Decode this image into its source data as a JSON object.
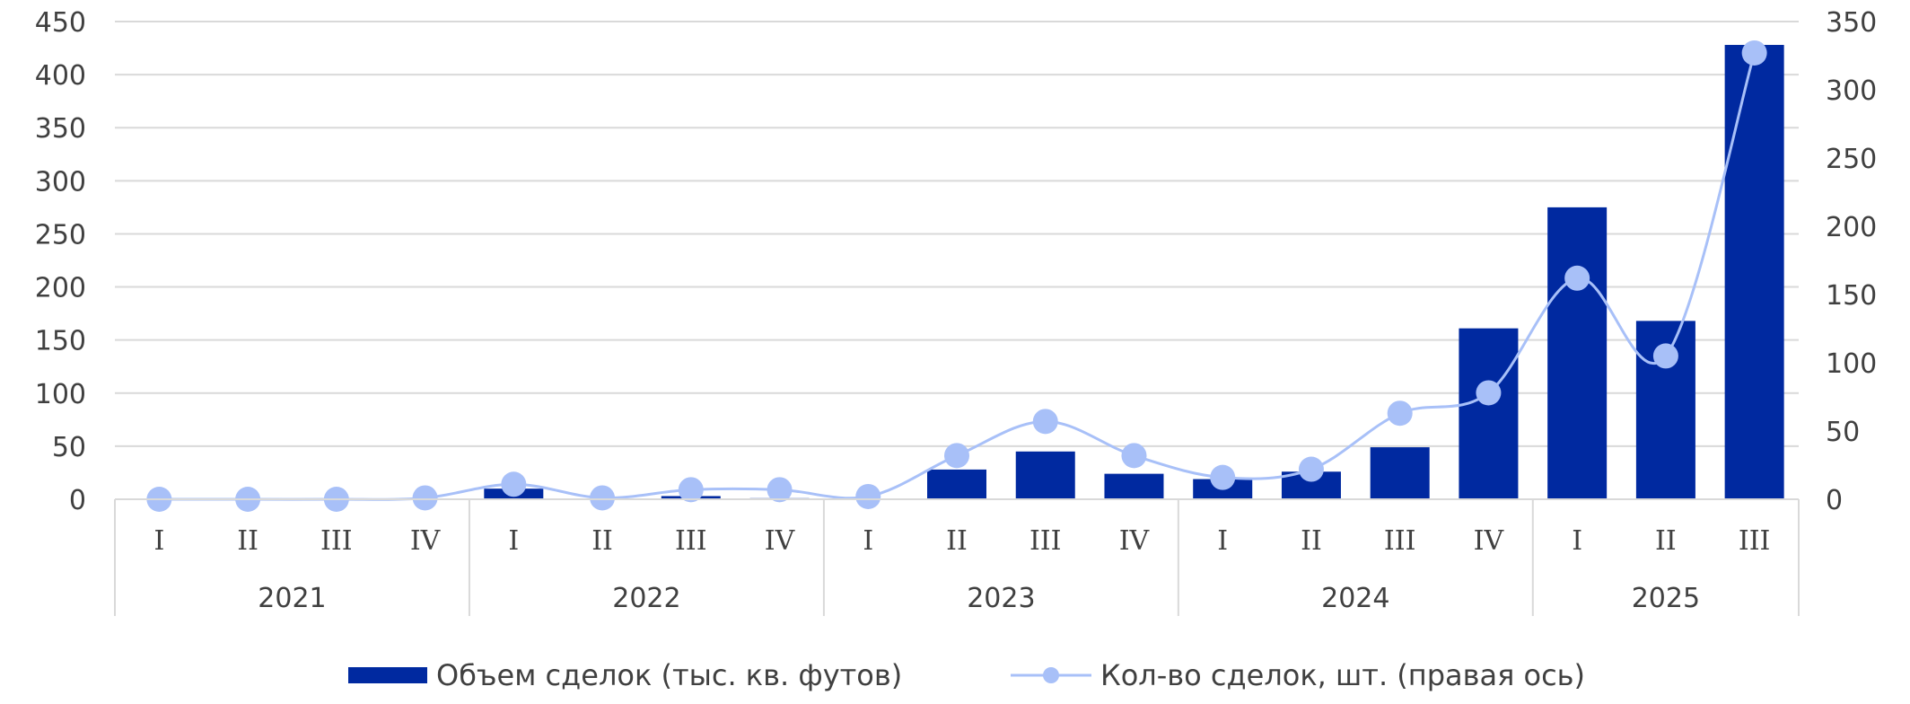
{
  "chart_data": {
    "type": "bar",
    "categories": [
      "I",
      "II",
      "III",
      "IV",
      "I",
      "II",
      "III",
      "IV",
      "I",
      "II",
      "III",
      "IV",
      "I",
      "II",
      "III",
      "IV",
      "I",
      "II",
      "III"
    ],
    "groups": [
      {
        "label": "2021",
        "count": 4
      },
      {
        "label": "2022",
        "count": 4
      },
      {
        "label": "2023",
        "count": 4
      },
      {
        "label": "2024",
        "count": 4
      },
      {
        "label": "2025",
        "count": 3
      }
    ],
    "series": [
      {
        "name": "Объем сделок (тыс. кв. футов)",
        "type": "bar",
        "axis": "left",
        "color": "#0029a0",
        "values": [
          0,
          0,
          0,
          0,
          10,
          0,
          3,
          1,
          0,
          28,
          45,
          24,
          19,
          26,
          49,
          161,
          275,
          168,
          428
        ]
      },
      {
        "name": "Кол-во сделок, шт. (правая ось)",
        "type": "line",
        "axis": "right",
        "color": "#a8c0f8",
        "smooth": true,
        "values": [
          0,
          0,
          0,
          1,
          11,
          1,
          7,
          7,
          2,
          32,
          57,
          32,
          16,
          22,
          63,
          78,
          162,
          105,
          327
        ]
      }
    ],
    "y_left": {
      "min": 0,
      "max": 450,
      "step": 50
    },
    "y_right": {
      "min": 0,
      "max": 350,
      "step": 50
    },
    "grid": true,
    "legend_position": "bottom"
  }
}
